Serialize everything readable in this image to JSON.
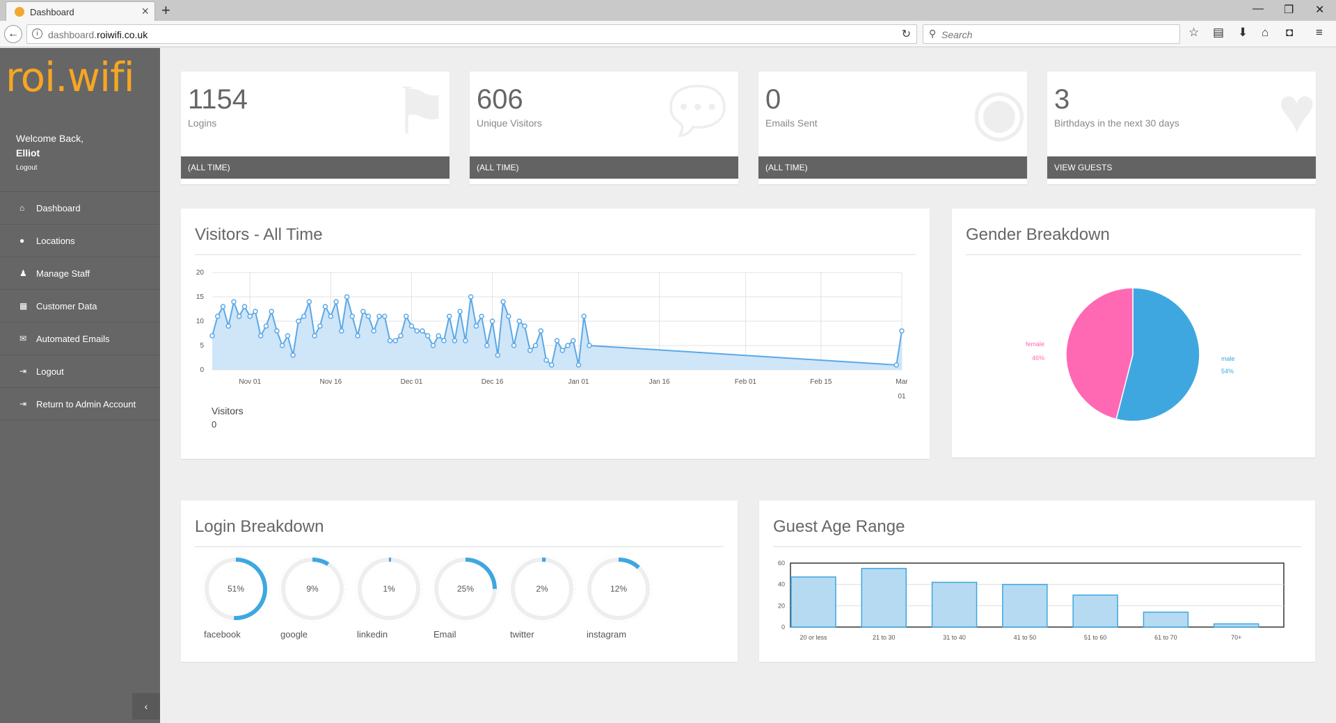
{
  "browser": {
    "tab_title": "Dashboard",
    "url_host": "dashboard.",
    "url_domain": "roiwifi.co.uk",
    "search_placeholder": "Search"
  },
  "sidebar": {
    "logo": "roi.wifi",
    "welcome": "Welcome Back,",
    "user": "Elliot",
    "logout": "Logout",
    "items": [
      {
        "label": "Dashboard",
        "icon": "home-icon"
      },
      {
        "label": "Locations",
        "icon": "map-marker-icon"
      },
      {
        "label": "Manage Staff",
        "icon": "user-icon"
      },
      {
        "label": "Customer Data",
        "icon": "table-icon"
      },
      {
        "label": "Automated Emails",
        "icon": "envelope-icon"
      },
      {
        "label": "Logout",
        "icon": "sign-out-icon"
      },
      {
        "label": "Return to Admin Account",
        "icon": "sign-out-icon"
      }
    ]
  },
  "stats": [
    {
      "value": "1154",
      "label": "Logins",
      "footer": "(ALL TIME)",
      "icon": "flag-icon"
    },
    {
      "value": "606",
      "label": "Unique Visitors",
      "footer": "(ALL TIME)",
      "icon": "comments-icon"
    },
    {
      "value": "0",
      "label": "Emails Sent",
      "footer": "(ALL TIME)",
      "icon": "eye-icon"
    },
    {
      "value": "3",
      "label": "Birthdays in the next 30 days",
      "footer": "VIEW GUESTS",
      "icon": "heart-icon"
    }
  ],
  "visitors": {
    "title": "Visitors - All Time",
    "legend_label": "Visitors",
    "legend_value": "0"
  },
  "gender": {
    "title": "Gender Breakdown"
  },
  "login_breakdown": {
    "title": "Login Breakdown",
    "items": [
      {
        "name": "facebook",
        "percent": 51,
        "label": "51%"
      },
      {
        "name": "google",
        "percent": 9,
        "label": "9%"
      },
      {
        "name": "linkedin",
        "percent": 1,
        "label": "1%"
      },
      {
        "name": "Email",
        "percent": 25,
        "label": "25%"
      },
      {
        "name": "twitter",
        "percent": 2,
        "label": "2%"
      },
      {
        "name": "instagram",
        "percent": 12,
        "label": "12%"
      }
    ]
  },
  "age_range": {
    "title": "Guest Age Range"
  },
  "chart_data": [
    {
      "type": "line",
      "title": "Visitors - All Time",
      "x_tick_labels": [
        "Nov 01",
        "Nov 16",
        "Dec 01",
        "Dec 16",
        "Jan 01",
        "Jan 16",
        "Feb 01",
        "Feb 15",
        "Mar 01"
      ],
      "y_ticks": [
        0,
        5,
        10,
        15,
        20
      ],
      "ylim": [
        0,
        20
      ],
      "series": [
        {
          "values": [
            7,
            11,
            13,
            9,
            14,
            11,
            13,
            11,
            12,
            7,
            9,
            12,
            8,
            5,
            7,
            3,
            10,
            11,
            14,
            7,
            9,
            13,
            11,
            14,
            8,
            15,
            11,
            7,
            12,
            11,
            8,
            11,
            11,
            6,
            6,
            7,
            11,
            9,
            8,
            8,
            7,
            5,
            7,
            6,
            11,
            6,
            12,
            6,
            15,
            9,
            11,
            5,
            10,
            3,
            14,
            11,
            5,
            10,
            9,
            4,
            5,
            8,
            2,
            1,
            6,
            4,
            5,
            6,
            1,
            11
          ]
        },
        {
          "values": [
            5,
            1,
            8
          ]
        }
      ],
      "x_points_days": {
        "start": "2014-10-25",
        "daily": true
      },
      "fill": "#cfe5f8",
      "line_color": "#5aa8e6"
    },
    {
      "type": "pie",
      "title": "Gender Breakdown",
      "slices": [
        {
          "name": "male",
          "value": 54,
          "label": "54%",
          "color": "#3fa7e0"
        },
        {
          "name": "female",
          "value": 46,
          "label": "46%",
          "color": "#ff69b4"
        }
      ]
    },
    {
      "type": "bar",
      "title": "Guest Age Range",
      "categories": [
        "20 or less",
        "21 to 30",
        "31 to 40",
        "41 to 50",
        "51 to 60",
        "61 to 70",
        "70+"
      ],
      "values": [
        47,
        55,
        42,
        40,
        30,
        14,
        3
      ],
      "y_ticks": [
        0,
        20,
        40,
        60
      ],
      "ylim": [
        0,
        60
      ],
      "bar_color": "#b5daf1",
      "bar_border": "#3fa7e0"
    }
  ]
}
